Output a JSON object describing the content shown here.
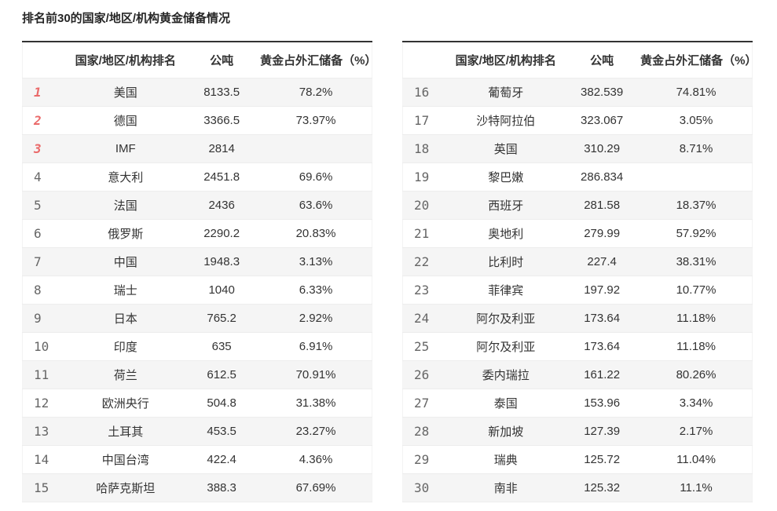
{
  "title": "排名前30的国家/地区/机构黄金储备情况",
  "columns": {
    "rank": "",
    "name": "国家/地区/机构排名",
    "tonnes": "公吨",
    "pct": "黄金占外汇储备（%）"
  },
  "colors": {
    "top_rank_red": "#ea6a6a",
    "rank_gray": "#666666",
    "body_text": "#333333",
    "row_alt_bg": "#f5f5f5",
    "table_top_border": "#333333",
    "row_separator": "#ededed"
  },
  "tables": {
    "left": {
      "rows": [
        {
          "rank": "1",
          "name": "美国",
          "tonnes": "8133.5",
          "pct": "78.2%",
          "top": true
        },
        {
          "rank": "2",
          "name": "德国",
          "tonnes": "3366.5",
          "pct": "73.97%",
          "top": true
        },
        {
          "rank": "3",
          "name": "IMF",
          "tonnes": "2814",
          "pct": "",
          "top": true
        },
        {
          "rank": "4",
          "name": "意大利",
          "tonnes": "2451.8",
          "pct": "69.6%",
          "top": false
        },
        {
          "rank": "5",
          "name": "法国",
          "tonnes": "2436",
          "pct": "63.6%",
          "top": false
        },
        {
          "rank": "6",
          "name": "俄罗斯",
          "tonnes": "2290.2",
          "pct": "20.83%",
          "top": false
        },
        {
          "rank": "7",
          "name": "中国",
          "tonnes": "1948.3",
          "pct": "3.13%",
          "top": false
        },
        {
          "rank": "8",
          "name": "瑞士",
          "tonnes": "1040",
          "pct": "6.33%",
          "top": false
        },
        {
          "rank": "9",
          "name": "日本",
          "tonnes": "765.2",
          "pct": "2.92%",
          "top": false
        },
        {
          "rank": "10",
          "name": "印度",
          "tonnes": "635",
          "pct": "6.91%",
          "top": false
        },
        {
          "rank": "11",
          "name": "荷兰",
          "tonnes": "612.5",
          "pct": "70.91%",
          "top": false
        },
        {
          "rank": "12",
          "name": "欧洲央行",
          "tonnes": "504.8",
          "pct": "31.38%",
          "top": false
        },
        {
          "rank": "13",
          "name": "土耳其",
          "tonnes": "453.5",
          "pct": "23.27%",
          "top": false
        },
        {
          "rank": "14",
          "name": "中国台湾",
          "tonnes": "422.4",
          "pct": "4.36%",
          "top": false
        },
        {
          "rank": "15",
          "name": "哈萨克斯坦",
          "tonnes": "388.3",
          "pct": "67.69%",
          "top": false
        }
      ]
    },
    "right": {
      "rows": [
        {
          "rank": "16",
          "name": "葡萄牙",
          "tonnes": "382.539",
          "pct": "74.81%",
          "top": false
        },
        {
          "rank": "17",
          "name": "沙特阿拉伯",
          "tonnes": "323.067",
          "pct": "3.05%",
          "top": false
        },
        {
          "rank": "18",
          "name": "英国",
          "tonnes": "310.29",
          "pct": "8.71%",
          "top": false
        },
        {
          "rank": "19",
          "name": "黎巴嫩",
          "tonnes": "286.834",
          "pct": "",
          "top": false
        },
        {
          "rank": "20",
          "name": "西班牙",
          "tonnes": "281.58",
          "pct": "18.37%",
          "top": false
        },
        {
          "rank": "21",
          "name": "奥地利",
          "tonnes": "279.99",
          "pct": "57.92%",
          "top": false
        },
        {
          "rank": "22",
          "name": "比利时",
          "tonnes": "227.4",
          "pct": "38.31%",
          "top": false
        },
        {
          "rank": "23",
          "name": "菲律宾",
          "tonnes": "197.92",
          "pct": "10.77%",
          "top": false
        },
        {
          "rank": "24",
          "name": "阿尔及利亚",
          "tonnes": "173.64",
          "pct": "11.18%",
          "top": false
        },
        {
          "rank": "25",
          "name": "阿尔及利亚",
          "tonnes": "173.64",
          "pct": "11.18%",
          "top": false
        },
        {
          "rank": "26",
          "name": "委内瑞拉",
          "tonnes": "161.22",
          "pct": "80.26%",
          "top": false
        },
        {
          "rank": "27",
          "name": "泰国",
          "tonnes": "153.96",
          "pct": "3.34%",
          "top": false
        },
        {
          "rank": "28",
          "name": "新加坡",
          "tonnes": "127.39",
          "pct": "2.17%",
          "top": false
        },
        {
          "rank": "29",
          "name": "瑞典",
          "tonnes": "125.72",
          "pct": "11.04%",
          "top": false
        },
        {
          "rank": "30",
          "name": "南非",
          "tonnes": "125.32",
          "pct": "11.1%",
          "top": false
        }
      ]
    }
  },
  "chart_data": {
    "type": "table",
    "title": "排名前30的国家/地区/机构黄金储备情况",
    "columns": [
      "排名",
      "国家/地区/机构",
      "公吨",
      "黄金占外汇储备（%）"
    ],
    "rows": [
      [
        1,
        "美国",
        8133.5,
        "78.2%"
      ],
      [
        2,
        "德国",
        3366.5,
        "73.97%"
      ],
      [
        3,
        "IMF",
        2814,
        null
      ],
      [
        4,
        "意大利",
        2451.8,
        "69.6%"
      ],
      [
        5,
        "法国",
        2436,
        "63.6%"
      ],
      [
        6,
        "俄罗斯",
        2290.2,
        "20.83%"
      ],
      [
        7,
        "中国",
        1948.3,
        "3.13%"
      ],
      [
        8,
        "瑞士",
        1040,
        "6.33%"
      ],
      [
        9,
        "日本",
        765.2,
        "2.92%"
      ],
      [
        10,
        "印度",
        635,
        "6.91%"
      ],
      [
        11,
        "荷兰",
        612.5,
        "70.91%"
      ],
      [
        12,
        "欧洲央行",
        504.8,
        "31.38%"
      ],
      [
        13,
        "土耳其",
        453.5,
        "23.27%"
      ],
      [
        14,
        "中国台湾",
        422.4,
        "4.36%"
      ],
      [
        15,
        "哈萨克斯坦",
        388.3,
        "67.69%"
      ],
      [
        16,
        "葡萄牙",
        382.539,
        "74.81%"
      ],
      [
        17,
        "沙特阿拉伯",
        323.067,
        "3.05%"
      ],
      [
        18,
        "英国",
        310.29,
        "8.71%"
      ],
      [
        19,
        "黎巴嫩",
        286.834,
        null
      ],
      [
        20,
        "西班牙",
        281.58,
        "18.37%"
      ],
      [
        21,
        "奥地利",
        279.99,
        "57.92%"
      ],
      [
        22,
        "比利时",
        227.4,
        "38.31%"
      ],
      [
        23,
        "菲律宾",
        197.92,
        "10.77%"
      ],
      [
        24,
        "阿尔及利亚",
        173.64,
        "11.18%"
      ],
      [
        25,
        "阿尔及利亚",
        173.64,
        "11.18%"
      ],
      [
        26,
        "委内瑞拉",
        161.22,
        "80.26%"
      ],
      [
        27,
        "泰国",
        153.96,
        "3.34%"
      ],
      [
        28,
        "新加坡",
        127.39,
        "2.17%"
      ],
      [
        29,
        "瑞典",
        125.72,
        "11.04%"
      ],
      [
        30,
        "南非",
        125.32,
        "11.1%"
      ]
    ]
  }
}
